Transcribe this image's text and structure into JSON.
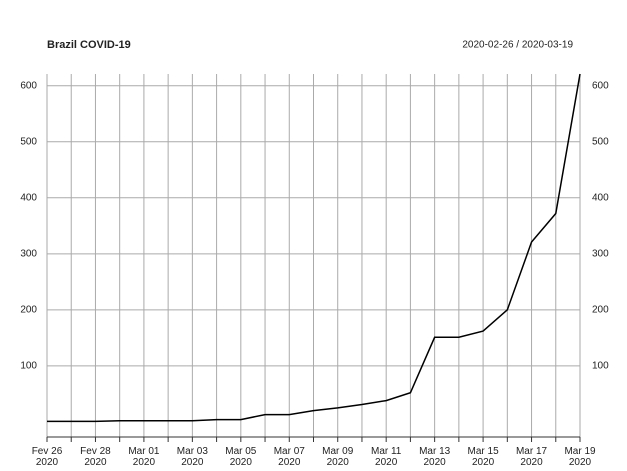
{
  "chart_data": {
    "type": "line",
    "title": "Brazil COVID-19",
    "subtitle": "2020-02-26 / 2020-03-19",
    "categories": [
      "Fev 26\n2020",
      null,
      "Fev 28\n2020",
      null,
      "Mar 01\n2020",
      null,
      "Mar 03\n2020",
      null,
      "Mar 05\n2020",
      null,
      "Mar 07\n2020",
      null,
      "Mar 09\n2020",
      null,
      "Mar 11\n2020",
      null,
      "Mar 13\n2020",
      null,
      "Mar 15\n2020",
      null,
      "Mar 17\n2020",
      null,
      "Mar 19\n2020"
    ],
    "values": [
      1,
      1,
      1,
      2,
      2,
      2,
      2,
      4,
      4,
      13,
      13,
      20,
      25,
      31,
      38,
      52,
      151,
      151,
      162,
      200,
      321,
      372,
      621
    ],
    "color": "#000000",
    "ylim": [
      -27,
      621
    ],
    "yticks": [
      100,
      200,
      300,
      400,
      500,
      600
    ],
    "grid": true
  }
}
